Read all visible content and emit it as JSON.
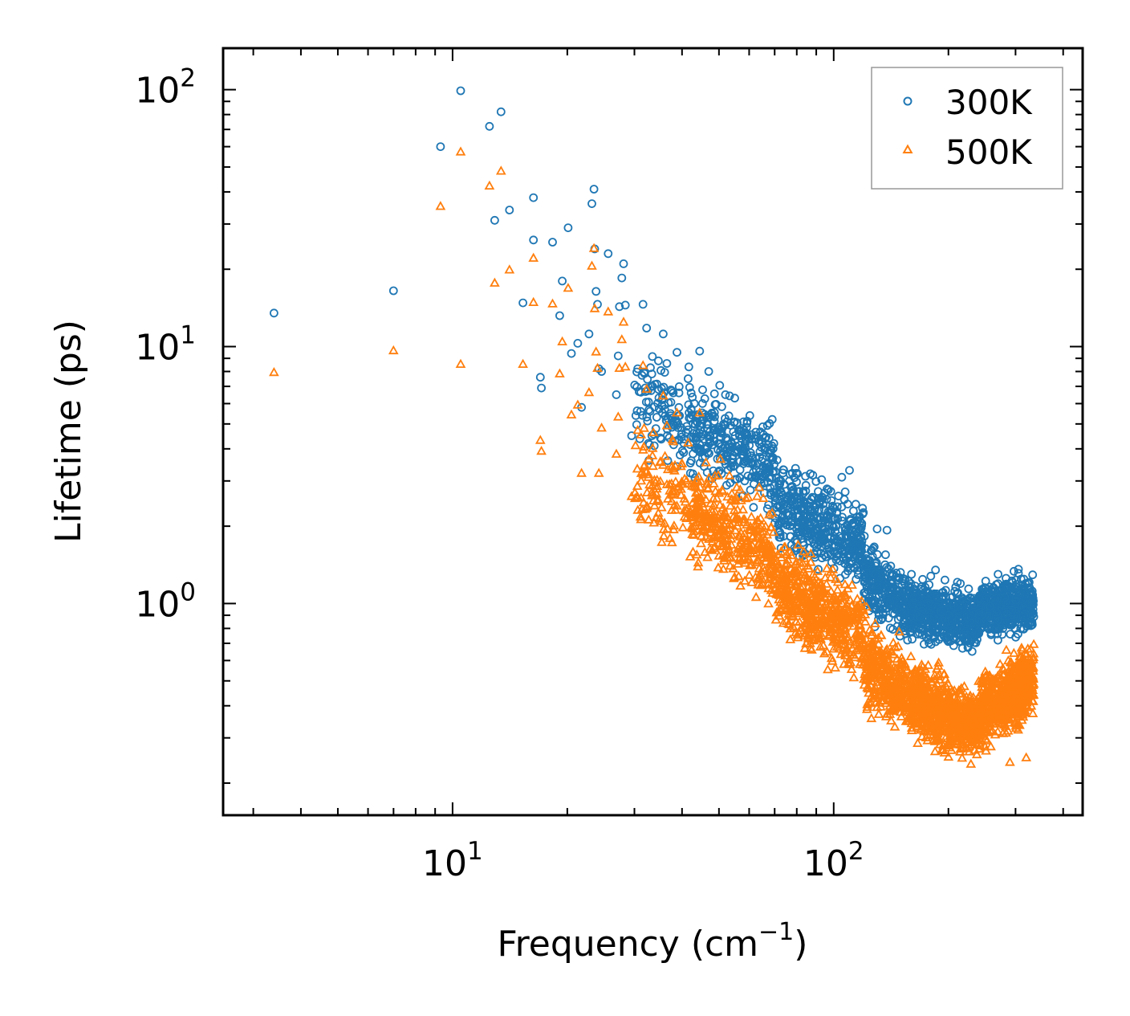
{
  "chart_data": {
    "type": "scatter",
    "title": "",
    "xlabel": "Frequency (cm",
    "xlabel_sup": "−1",
    "xlabel_close": ")",
    "ylabel": "Lifetime (ps)",
    "xscale": "log",
    "yscale": "log",
    "xlim": [
      2.5,
      450
    ],
    "ylim": [
      0.15,
      145
    ],
    "x_major_ticks": [
      {
        "value": 10,
        "base": "10",
        "exp": "1"
      },
      {
        "value": 100,
        "base": "10",
        "exp": "2"
      }
    ],
    "y_major_ticks": [
      {
        "value": 1,
        "base": "10",
        "exp": "0"
      },
      {
        "value": 10,
        "base": "10",
        "exp": "1"
      },
      {
        "value": 100,
        "base": "10",
        "exp": "2"
      }
    ],
    "legend_position": "top-right",
    "series": [
      {
        "name": "300K",
        "marker": "circle",
        "color": "#1f77b4",
        "points": [
          [
            3.4,
            13.5
          ],
          [
            7.0,
            16.5
          ],
          [
            9.3,
            60
          ],
          [
            10.5,
            99
          ],
          [
            12.5,
            72
          ],
          [
            12.9,
            31
          ],
          [
            13.4,
            82
          ],
          [
            14.1,
            34
          ],
          [
            15.3,
            14.8
          ],
          [
            16.3,
            38
          ],
          [
            16.3,
            26
          ],
          [
            17.0,
            7.6
          ],
          [
            17.1,
            6.9
          ],
          [
            18.3,
            25.5
          ],
          [
            19.1,
            13.2
          ],
          [
            19.4,
            18
          ],
          [
            20.1,
            29
          ],
          [
            20.5,
            9.4
          ],
          [
            21.3,
            10.3
          ],
          [
            21.8,
            5.8
          ],
          [
            22.8,
            11.2
          ],
          [
            23.2,
            36
          ],
          [
            23.5,
            41
          ],
          [
            23.6,
            24
          ],
          [
            23.8,
            16.4
          ],
          [
            24.0,
            14.6
          ],
          [
            24.2,
            8.2
          ],
          [
            24.6,
            8.0
          ],
          [
            25.6,
            23
          ],
          [
            26.9,
            6.5
          ],
          [
            27.2,
            9.2
          ],
          [
            27.4,
            14.3
          ],
          [
            27.8,
            18.5
          ],
          [
            28.1,
            21
          ],
          [
            28.4,
            14.5
          ],
          [
            29.5,
            4.5
          ],
          [
            30.6,
            8.2
          ],
          [
            31.6,
            14.6
          ],
          [
            32.3,
            11.8
          ],
          [
            33.5,
            7.0
          ],
          [
            35.7,
            11.2
          ],
          [
            36.5,
            8.6
          ],
          [
            38.8,
            9.5
          ],
          [
            41.5,
            7.5
          ],
          [
            44.5,
            9.6
          ],
          [
            47.0,
            8.0
          ],
          [
            52.0,
            6.5
          ],
          [
            55.0,
            6.3
          ],
          [
            58.0,
            5.1
          ],
          [
            105.0,
            3.1
          ],
          [
            110.0,
            3.3
          ],
          [
            130.0,
            1.95
          ],
          [
            138.0,
            1.93
          ],
          [
            160.0,
            1.3
          ],
          [
            185.0,
            1.35
          ],
          [
            270.0,
            1.3
          ]
        ],
        "bands": [
          {
            "xmin": 30,
            "xmax": 42,
            "ymid_start": 6.0,
            "ymid_end": 5.2,
            "spread": 1.5,
            "count": 110
          },
          {
            "xmin": 42,
            "xmax": 70,
            "ymid_start": 4.8,
            "ymid_end": 3.5,
            "spread": 1.45,
            "count": 300
          },
          {
            "xmin": 70,
            "xmax": 120,
            "ymid_start": 2.4,
            "ymid_end": 1.7,
            "spread": 1.4,
            "count": 450
          },
          {
            "xmin": 120,
            "xmax": 160,
            "ymid_start": 1.3,
            "ymid_end": 0.95,
            "spread": 1.35,
            "count": 300
          },
          {
            "xmin": 160,
            "xmax": 240,
            "ymid_start": 0.95,
            "ymid_end": 0.85,
            "spread": 1.25,
            "count": 550
          },
          {
            "xmin": 240,
            "xmax": 335,
            "ymid_start": 0.95,
            "ymid_end": 1.0,
            "spread": 1.25,
            "count": 500
          }
        ]
      },
      {
        "name": "500K",
        "marker": "triangle",
        "color": "#ff7f0e",
        "points": [
          [
            3.4,
            7.9
          ],
          [
            7.0,
            9.6
          ],
          [
            9.3,
            35
          ],
          [
            10.5,
            57
          ],
          [
            10.5,
            8.5
          ],
          [
            12.5,
            42
          ],
          [
            12.9,
            17.6
          ],
          [
            13.4,
            48
          ],
          [
            14.1,
            19.8
          ],
          [
            15.3,
            8.5
          ],
          [
            16.3,
            22
          ],
          [
            16.3,
            14.8
          ],
          [
            17.0,
            4.3
          ],
          [
            17.1,
            3.9
          ],
          [
            18.3,
            14.6
          ],
          [
            19.1,
            7.8
          ],
          [
            19.4,
            10.4
          ],
          [
            20.1,
            16.8
          ],
          [
            20.5,
            5.4
          ],
          [
            21.3,
            5.9
          ],
          [
            21.8,
            3.2
          ],
          [
            22.8,
            6.6
          ],
          [
            23.2,
            20.5
          ],
          [
            23.5,
            24
          ],
          [
            23.6,
            14
          ],
          [
            23.8,
            9.5
          ],
          [
            24.0,
            8.2
          ],
          [
            24.2,
            3.2
          ],
          [
            24.6,
            4.8
          ],
          [
            25.6,
            13.6
          ],
          [
            26.9,
            3.8
          ],
          [
            27.2,
            5.3
          ],
          [
            27.4,
            8.2
          ],
          [
            27.8,
            10.6
          ],
          [
            28.1,
            12.4
          ],
          [
            28.4,
            8.3
          ],
          [
            29.5,
            2.6
          ],
          [
            30.6,
            4.7
          ],
          [
            31.6,
            8.4
          ],
          [
            32.3,
            6.8
          ],
          [
            33.5,
            4.0
          ],
          [
            35.7,
            6.4
          ],
          [
            36.5,
            4.9
          ],
          [
            38.8,
            5.5
          ],
          [
            41.5,
            4.2
          ],
          [
            44.5,
            5.5
          ],
          [
            290.0,
            0.24
          ],
          [
            320.0,
            0.25
          ]
        ],
        "bands": [
          {
            "xmin": 30,
            "xmax": 42,
            "ymid_start": 3.0,
            "ymid_end": 2.6,
            "spread": 1.55,
            "count": 120
          },
          {
            "xmin": 42,
            "xmax": 70,
            "ymid_start": 2.3,
            "ymid_end": 1.5,
            "spread": 1.5,
            "count": 380
          },
          {
            "xmin": 70,
            "xmax": 120,
            "ymid_start": 1.2,
            "ymid_end": 0.75,
            "spread": 1.45,
            "count": 550
          },
          {
            "xmin": 120,
            "xmax": 160,
            "ymid_start": 0.6,
            "ymid_end": 0.42,
            "spread": 1.4,
            "count": 350
          },
          {
            "xmin": 160,
            "xmax": 240,
            "ymid_start": 0.42,
            "ymid_end": 0.33,
            "spread": 1.35,
            "count": 700
          },
          {
            "xmin": 240,
            "xmax": 335,
            "ymid_start": 0.38,
            "ymid_end": 0.5,
            "spread": 1.35,
            "count": 650
          }
        ]
      }
    ]
  }
}
